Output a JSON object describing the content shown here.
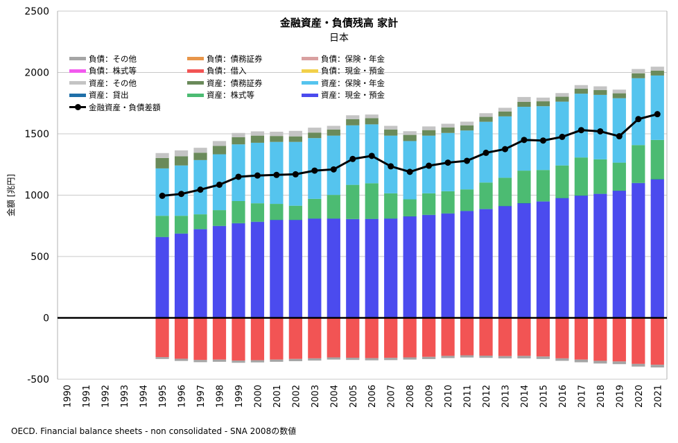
{
  "title": "金融資産・負債残高 家計",
  "subtitle": "日本",
  "source": "OECD. Financial balance sheets - non consolidated - SNA 2008の数値",
  "chart_data": {
    "type": "bar",
    "stacked": true,
    "ylabel": "金額 [兆円]",
    "ylim": [
      -500,
      2500
    ],
    "yticks": [
      -500,
      0,
      500,
      1000,
      1500,
      2000,
      2500
    ],
    "grid": true,
    "legend_position": "top-left",
    "categories": [
      "1990",
      "1991",
      "1992",
      "1993",
      "1994",
      "1995",
      "1996",
      "1997",
      "1998",
      "1999",
      "2000",
      "2001",
      "2002",
      "2003",
      "2004",
      "2005",
      "2006",
      "2007",
      "2008",
      "2009",
      "2010",
      "2011",
      "2012",
      "2013",
      "2014",
      "2015",
      "2016",
      "2017",
      "2018",
      "2019",
      "2020",
      "2021"
    ],
    "legend_order": [
      "負債：その他",
      "負債：債務証券",
      "負債：保険・年金",
      "負債：株式等",
      "負債：借入",
      "負債：現金・預金",
      "資産：その他",
      "資産：債務証券",
      "資産：保険・年金",
      "資産：貸出",
      "資産：株式等",
      "資産：現金・預金",
      "金融資産・負債差額"
    ],
    "series": [
      {
        "name": "資産：現金・預金",
        "color": "#4b4bee",
        "values": [
          null,
          null,
          null,
          null,
          null,
          658,
          686,
          722,
          748,
          770,
          782,
          797,
          797,
          808,
          808,
          804,
          805,
          808,
          826,
          838,
          850,
          870,
          886,
          910,
          933,
          948,
          975,
          995,
          1010,
          1035,
          1098,
          1128
        ]
      },
      {
        "name": "資産：貸出",
        "color": "#1f6fa8",
        "values": [
          null,
          null,
          null,
          null,
          null,
          2,
          2,
          2,
          2,
          2,
          2,
          2,
          2,
          2,
          2,
          2,
          2,
          2,
          2,
          2,
          2,
          2,
          2,
          2,
          2,
          2,
          2,
          2,
          2,
          2,
          2,
          2
        ]
      },
      {
        "name": "資産：株式等",
        "color": "#4cbb72",
        "values": [
          null,
          null,
          null,
          null,
          null,
          172,
          144,
          120,
          128,
          180,
          150,
          130,
          115,
          160,
          192,
          278,
          290,
          205,
          138,
          175,
          180,
          175,
          215,
          230,
          265,
          255,
          265,
          310,
          280,
          228,
          308,
          320
        ]
      },
      {
        "name": "資産：保険・年金",
        "color": "#55c4ee",
        "values": [
          null,
          null,
          null,
          null,
          null,
          386,
          410,
          442,
          455,
          462,
          493,
          505,
          520,
          495,
          483,
          485,
          480,
          470,
          475,
          470,
          475,
          480,
          495,
          500,
          520,
          520,
          520,
          520,
          525,
          525,
          545,
          525
        ]
      },
      {
        "name": "資産：債務証券",
        "color": "#6a8a5a",
        "values": [
          null,
          null,
          null,
          null,
          null,
          85,
          75,
          60,
          68,
          58,
          58,
          48,
          45,
          45,
          50,
          50,
          50,
          50,
          50,
          45,
          45,
          42,
          40,
          40,
          40,
          40,
          40,
          40,
          40,
          40,
          40,
          40
        ]
      },
      {
        "name": "資産：その他",
        "color": "#c4c4c4",
        "values": [
          null,
          null,
          null,
          null,
          null,
          40,
          48,
          40,
          40,
          35,
          35,
          35,
          45,
          40,
          30,
          32,
          30,
          30,
          30,
          30,
          30,
          30,
          30,
          30,
          40,
          30,
          30,
          30,
          30,
          30,
          35,
          32
        ]
      },
      {
        "name": "負債：現金・預金",
        "color": "#f2d04a",
        "values": [
          null,
          null,
          null,
          null,
          null,
          0,
          0,
          0,
          0,
          0,
          0,
          0,
          0,
          0,
          0,
          0,
          0,
          0,
          0,
          0,
          0,
          0,
          0,
          0,
          0,
          0,
          0,
          0,
          0,
          0,
          0,
          0
        ]
      },
      {
        "name": "負債：借入",
        "color": "#f25454",
        "values": [
          null,
          null,
          null,
          null,
          null,
          -320,
          -333,
          -343,
          -340,
          -348,
          -345,
          -340,
          -335,
          -330,
          -322,
          -325,
          -328,
          -326,
          -322,
          -318,
          -310,
          -305,
          -308,
          -312,
          -310,
          -315,
          -330,
          -340,
          -350,
          -355,
          -375,
          -382
        ]
      },
      {
        "name": "負債：株式等",
        "color": "#f25aee",
        "values": [
          null,
          null,
          null,
          null,
          null,
          0,
          0,
          0,
          0,
          0,
          0,
          0,
          0,
          0,
          0,
          0,
          0,
          0,
          0,
          0,
          0,
          0,
          0,
          0,
          0,
          0,
          0,
          0,
          0,
          0,
          0,
          0
        ]
      },
      {
        "name": "負債：保険・年金",
        "color": "#d9a0a0",
        "values": [
          null,
          null,
          null,
          null,
          null,
          0,
          0,
          0,
          0,
          0,
          0,
          0,
          0,
          0,
          0,
          0,
          0,
          0,
          0,
          0,
          0,
          0,
          0,
          0,
          0,
          0,
          0,
          0,
          0,
          0,
          0,
          0
        ]
      },
      {
        "name": "負債：債務証券",
        "color": "#e8964a",
        "values": [
          null,
          null,
          null,
          null,
          null,
          0,
          0,
          0,
          0,
          0,
          0,
          0,
          0,
          0,
          0,
          0,
          0,
          0,
          0,
          0,
          0,
          0,
          0,
          0,
          0,
          0,
          0,
          0,
          0,
          0,
          0,
          0
        ]
      },
      {
        "name": "負債：その他",
        "color": "#a5a5a5",
        "values": [
          null,
          null,
          null,
          null,
          null,
          -15,
          -18,
          -18,
          -18,
          -18,
          -18,
          -18,
          -18,
          -18,
          -18,
          -18,
          -18,
          -18,
          -18,
          -18,
          -18,
          -18,
          -18,
          -18,
          -20,
          -20,
          -20,
          -22,
          -22,
          -22,
          -22,
          -22
        ]
      },
      {
        "name": "金融資産・負債差額",
        "color": "#000000",
        "kind": "line",
        "values": [
          null,
          null,
          null,
          null,
          null,
          995,
          1010,
          1045,
          1085,
          1150,
          1160,
          1165,
          1170,
          1200,
          1210,
          1295,
          1320,
          1235,
          1190,
          1240,
          1265,
          1280,
          1345,
          1375,
          1450,
          1445,
          1475,
          1530,
          1520,
          1480,
          1620,
          1660
        ]
      }
    ]
  }
}
